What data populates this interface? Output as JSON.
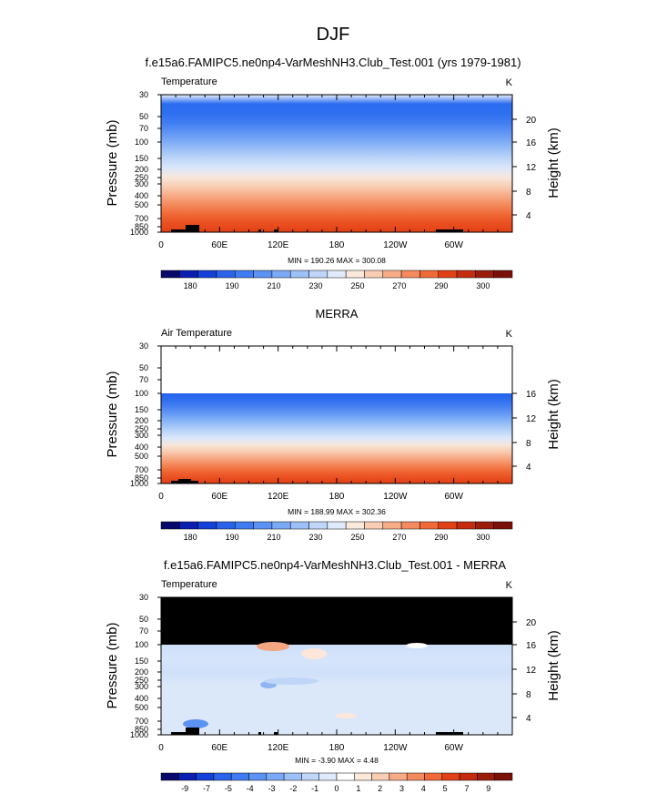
{
  "figure": {
    "title": "DJF"
  },
  "chart_data": [
    {
      "type": "heatmap",
      "title": "f.e15a6.FAMIPC5.ne0np4-VarMeshNH3.Club_Test.001 (yrs 1979-1981)",
      "left_label": "Temperature",
      "units": "K",
      "ylabel": "Pressure (mb)",
      "ylabel_right": "Height (km)",
      "y_ticks": [
        "30",
        "50",
        "70",
        "100",
        "150",
        "200",
        "250",
        "300",
        "400",
        "500",
        "700",
        "850",
        "1000"
      ],
      "y_right_ticks": [
        "20",
        "16",
        "12",
        "8",
        "4"
      ],
      "x_ticks": [
        "0",
        "60E",
        "120E",
        "180",
        "120W",
        "60W"
      ],
      "stats": "MIN = 190.26  MAX = 300.08",
      "colorbar_labels": [
        "180",
        "190",
        "210",
        "230",
        "250",
        "270",
        "290",
        "300"
      ],
      "colors": [
        "#e8f0fb",
        "#2b6cf0",
        "#2e6ff0",
        "#3f7cf1",
        "#5b92f3",
        "#7aa9f5",
        "#9cc0f7",
        "#bfd6f9",
        "#dbe7fa",
        "#f7e7dc",
        "#f9cdb4",
        "#f7ab87",
        "#f48a5d",
        "#f06a37",
        "#ea5020",
        "#e24116"
      ]
    },
    {
      "type": "heatmap",
      "title": "MERRA",
      "left_label": "Air Temperature",
      "units": "K",
      "ylabel": "Pressure (mb)",
      "ylabel_right": "Height (km)",
      "y_ticks": [
        "30",
        "50",
        "70",
        "100",
        "150",
        "200",
        "250",
        "300",
        "400",
        "500",
        "700",
        "850",
        "1000"
      ],
      "y_right_ticks": [
        "16",
        "12",
        "8",
        "4"
      ],
      "x_ticks": [
        "0",
        "60E",
        "120E",
        "180",
        "120W",
        "60W"
      ],
      "stats": "MIN = 188.99  MAX = 302.36",
      "colorbar_labels": [
        "180",
        "190",
        "210",
        "230",
        "250",
        "270",
        "290",
        "300"
      ],
      "colors": [
        "#2563ec",
        "#2f6ff0",
        "#457ff2",
        "#6096f4",
        "#7daef6",
        "#9fc4f8",
        "#c0d8f9",
        "#dce8fa",
        "#f6e6da",
        "#f9cdb3",
        "#f7ab87",
        "#f48a5d",
        "#f06a37",
        "#ea5020",
        "#e24116"
      ]
    },
    {
      "type": "heatmap",
      "title": "f.e15a6.FAMIPC5.ne0np4-VarMeshNH3.Club_Test.001 - MERRA",
      "left_label": "Temperature",
      "units": "K",
      "ylabel": "Pressure (mb)",
      "ylabel_right": "Height (km)",
      "y_ticks": [
        "30",
        "50",
        "70",
        "100",
        "150",
        "200",
        "250",
        "300",
        "400",
        "500",
        "700",
        "850",
        "1000"
      ],
      "y_right_ticks": [
        "20",
        "16",
        "12",
        "8",
        "4"
      ],
      "x_ticks": [
        "0",
        "60E",
        "120E",
        "180",
        "120W",
        "60W"
      ],
      "stats": "MIN = -3.90  MAX =  4.48",
      "colorbar_labels": [
        "-9",
        "-7",
        "-5",
        "-4",
        "-3",
        "-2",
        "-1",
        "0",
        "1",
        "2",
        "3",
        "4",
        "5",
        "7",
        "9"
      ],
      "colors": [
        "#f9d6c4",
        "#fae3d6",
        "#dbe8fa",
        "#d4e4fa",
        "#cfe0f9",
        "#d6e5fa",
        "#cfe0f9",
        "#dbe8fa",
        "#dbe8fa",
        "#dbe8fa",
        "#dbe8fa",
        "#dbe8fa"
      ]
    }
  ],
  "colorbars": {
    "temperature": [
      "#08086b",
      "#0a1fb0",
      "#1440d8",
      "#2a62ea",
      "#3f7cf1",
      "#5b92f3",
      "#7aa9f5",
      "#9cc0f7",
      "#bfd6f9",
      "#dfeafb",
      "#fbe9dc",
      "#f9cdb4",
      "#f7ab87",
      "#f48a5d",
      "#f06a37",
      "#e24116",
      "#c42b0f",
      "#9a1c0b",
      "#7a1008"
    ],
    "difference": [
      "#08086b",
      "#0a1fb0",
      "#1440d8",
      "#2a62ea",
      "#3f7cf1",
      "#5b92f3",
      "#7aa9f5",
      "#9cc0f7",
      "#bfd6f9",
      "#dfeafb",
      "#ffffff",
      "#fbe9dc",
      "#f9cdb4",
      "#f7ab87",
      "#f48a5d",
      "#f06a37",
      "#e24116",
      "#c42b0f",
      "#9a1c0b",
      "#7a1008"
    ]
  }
}
